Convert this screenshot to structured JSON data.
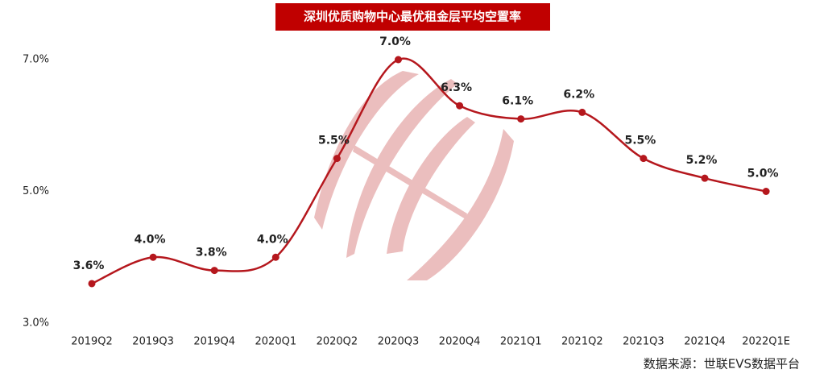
{
  "chart_data": {
    "type": "line",
    "title": "深圳优质购物中心最优租金层平均空置率",
    "categories": [
      "2019Q2",
      "2019Q3",
      "2019Q4",
      "2020Q1",
      "2020Q2",
      "2020Q3",
      "2020Q4",
      "2021Q1",
      "2021Q2",
      "2021Q3",
      "2021Q4",
      "2022Q1E"
    ],
    "series": [
      {
        "name": "平均空置率",
        "color": "#b5171d",
        "values": [
          3.6,
          4.0,
          3.8,
          4.0,
          5.5,
          7.0,
          6.3,
          6.1,
          6.2,
          5.5,
          5.2,
          5.0
        ],
        "value_labels": [
          "3.6%",
          "4.0%",
          "3.8%",
          "4.0%",
          "5.5%",
          "7.0%",
          "6.3%",
          "6.1%",
          "6.2%",
          "5.5%",
          "5.2%",
          "5.0%"
        ]
      }
    ],
    "ylim": [
      3.0,
      7.0
    ],
    "yticks": [
      {
        "value": 3.0,
        "label": "3.0%"
      },
      {
        "value": 5.0,
        "label": "5.0%"
      },
      {
        "value": 7.0,
        "label": "7.0%"
      }
    ],
    "grid": false,
    "source": "数据来源：世联EVS数据平台"
  }
}
